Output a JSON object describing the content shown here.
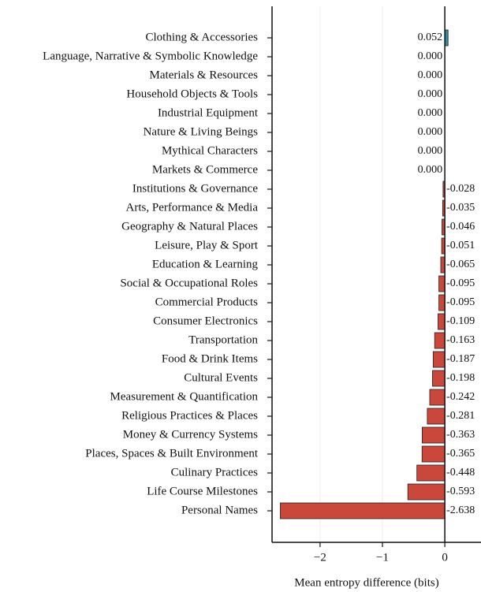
{
  "chart_data": {
    "type": "barh",
    "categories": [
      "Clothing & Accessories",
      "Language, Narrative & Symbolic Knowledge",
      "Materials & Resources",
      "Household Objects & Tools",
      "Industrial Equipment",
      "Nature & Living Beings",
      "Mythical Characters",
      "Markets & Commerce",
      "Institutions & Governance",
      "Arts, Performance & Media",
      "Geography & Natural Places",
      "Leisure, Play & Sport",
      "Education & Learning",
      "Social & Occupational Roles",
      "Commercial Products",
      "Consumer Electronics",
      "Transportation",
      "Food & Drink Items",
      "Cultural Events",
      "Measurement & Quantification",
      "Religious Practices & Places",
      "Money & Currency Systems",
      "Places, Spaces & Built Environment",
      "Culinary Practices",
      "Life Course Milestones",
      "Personal Names"
    ],
    "values": [
      0.052,
      0,
      0,
      0,
      0,
      0,
      0,
      0,
      -0.028,
      -0.035,
      -0.046,
      -0.051,
      -0.065,
      -0.095,
      -0.095,
      -0.109,
      -0.163,
      -0.187,
      -0.198,
      -0.242,
      -0.281,
      -0.363,
      -0.365,
      -0.448,
      -0.593,
      -2.638
    ],
    "value_labels": [
      "0.052",
      "0.000",
      "0.000",
      "0.000",
      "0.000",
      "0.000",
      "0.000",
      "0.000",
      "-0.028",
      "-0.035",
      "-0.046",
      "-0.051",
      "-0.065",
      "-0.095",
      "-0.095",
      "-0.109",
      "-0.163",
      "-0.187",
      "-0.198",
      "-0.242",
      "-0.281",
      "-0.363",
      "-0.365",
      "-0.448",
      "-0.593",
      "-2.638"
    ],
    "positive_color": "#2e8b9a",
    "negative_color": "#c9483b",
    "xlabel": "Mean entropy difference (bits)",
    "xlim": [
      -2.77,
      0.58
    ],
    "xticks": [
      {
        "value": -2,
        "label": "−2"
      },
      {
        "value": -1,
        "label": "−1"
      },
      0
    ],
    "grid": true
  }
}
